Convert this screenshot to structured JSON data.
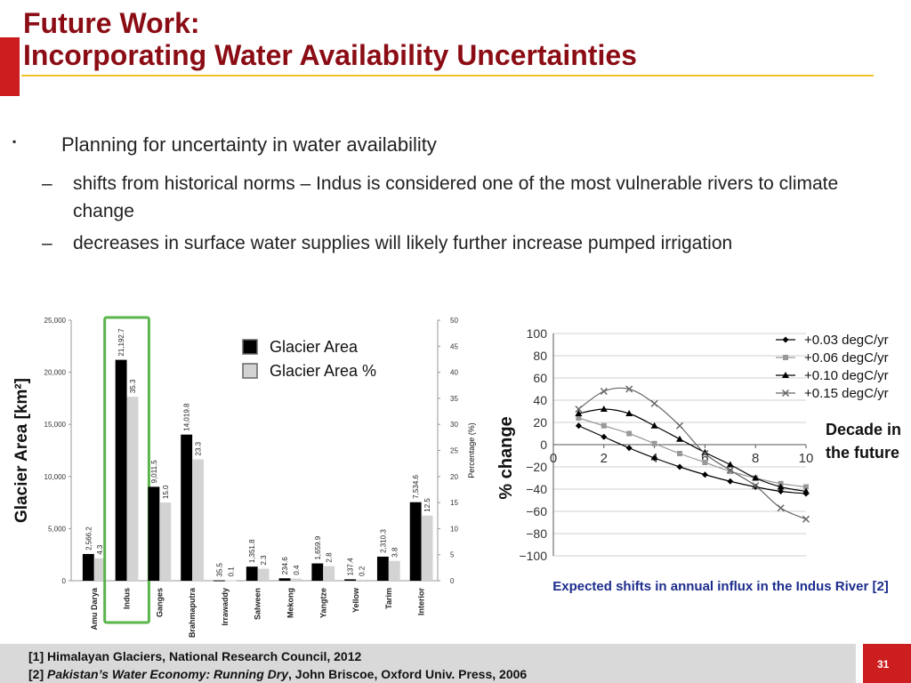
{
  "slide": {
    "title_line1": "Future Work:",
    "title_line2": "Incorporating Water Availability Uncertainties",
    "page_number": "31",
    "colors": {
      "title": "#8b0c14",
      "accent_red": "#cc1e1e",
      "rule": "#f2c22b",
      "caption": "#1d2d8c"
    }
  },
  "bullets": {
    "main_marker": "▪",
    "main": "Planning for uncertainty in water availability",
    "sub_marker": "–",
    "sub1": "shifts from historical norms – Indus is considered one of the most vulnerable rivers to climate change",
    "sub2": "decreases in surface water supplies will likely further increase pumped irrigation"
  },
  "chart_data": [
    {
      "type": "bar",
      "ylabel": "Glacier Area [km²]",
      "y2label": "Percentage (%)",
      "ylim": [
        0,
        25000
      ],
      "y2lim": [
        0,
        50
      ],
      "yticks": [
        "0",
        "5,000",
        "10,000",
        "15,000",
        "20,000",
        "25,000"
      ],
      "y2ticks": [
        "0",
        "5",
        "10",
        "15",
        "20",
        "25",
        "30",
        "35",
        "40",
        "45",
        "50"
      ],
      "categories": [
        "Amu Darya",
        "Indus",
        "Ganges",
        "Brahmaputra",
        "Irrawaddy",
        "Salween",
        "Mekong",
        "Yangtze",
        "Yellow",
        "Tarim",
        "Interior"
      ],
      "series": [
        {
          "name": "Glacier Area",
          "color": "#000000",
          "values": [
            2566.2,
            21192.7,
            9011.5,
            14019.8,
            35.5,
            1351.8,
            234.6,
            1659.9,
            137.4,
            2310.3,
            7534.6
          ],
          "labels": [
            "2,566.2",
            "21,192.7",
            "9,011.5",
            "14,019.8",
            "35.5",
            "1,351.8",
            "234.6",
            "1,659.9",
            "137.4",
            "2,310.3",
            "7,534.6"
          ]
        },
        {
          "name": "Glacier Area %",
          "color": "#d3d3d3",
          "values": [
            4.3,
            35.3,
            15.0,
            23.3,
            0.1,
            2.3,
            0.4,
            2.8,
            0.2,
            3.8,
            12.5
          ],
          "labels": [
            "4.3",
            "35.3",
            "15.0",
            "23.3",
            "0.1",
            "2.3",
            "0.4",
            "2.8",
            "0.2",
            "3.8",
            "12.5"
          ]
        }
      ],
      "highlight": "Indus",
      "highlight_color": "#5ab54b",
      "legend": "top-right"
    },
    {
      "type": "line",
      "ylabel": "% change",
      "xlabel": "Decade in the future",
      "xlim": [
        0,
        10
      ],
      "ylim": [
        -100,
        100
      ],
      "xticks": [
        "0",
        "2",
        "4",
        "6",
        "8",
        "10"
      ],
      "yticks": [
        "100",
        "80",
        "60",
        "40",
        "20",
        "0",
        "−20",
        "−40",
        "−60",
        "−80",
        "−100"
      ],
      "x": [
        1,
        2,
        3,
        4,
        5,
        6,
        7,
        8,
        9,
        10
      ],
      "series": [
        {
          "name": "+0.03 degC/yr",
          "marker": "diamond",
          "color": "#000000",
          "values": [
            17,
            7,
            -3,
            -12,
            -20,
            -27,
            -33,
            -38,
            -42,
            -44
          ]
        },
        {
          "name": "+0.06 degC/yr",
          "marker": "square",
          "color": "#999999",
          "values": [
            24,
            17,
            10,
            1,
            -8,
            -16,
            -24,
            -30,
            -35,
            -38
          ]
        },
        {
          "name": "+0.10 degC/yr",
          "marker": "triangle",
          "color": "#000000",
          "values": [
            28,
            32,
            28,
            17,
            5,
            -7,
            -18,
            -30,
            -38,
            -42
          ]
        },
        {
          "name": "+0.15 degC/yr",
          "marker": "x",
          "color": "#666666",
          "values": [
            32,
            48,
            50,
            37,
            17,
            -8,
            -23,
            -37,
            -57,
            -67
          ]
        }
      ],
      "legend": "top-right",
      "caption": "Expected shifts in annual influx in the Indus River [2]"
    }
  ],
  "references": {
    "ref1": "[1] Himalayan Glaciers, National Research Council, 2012",
    "ref2_prefix": "[2] ",
    "ref2_title": "Pakistan’s Water Economy: Running Dry",
    "ref2_suffix": ", John Briscoe, Oxford Univ. Press, 2006"
  }
}
